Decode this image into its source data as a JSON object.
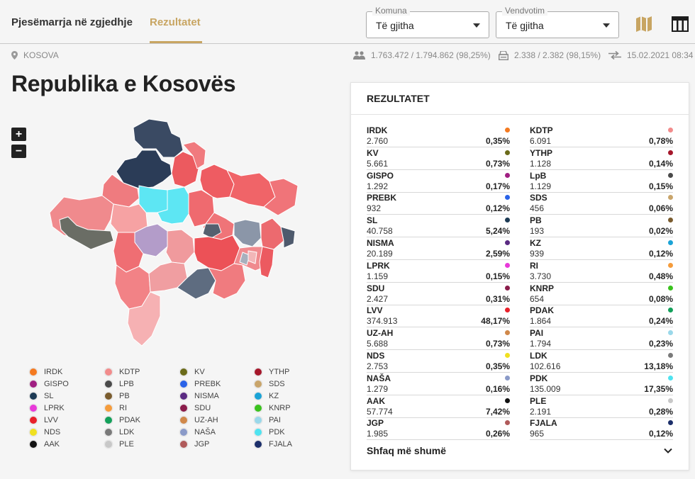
{
  "nav": {
    "tab_primary": "Pjesëmarrja në zgjedhje",
    "tab_active": "Rezultatet"
  },
  "filters": {
    "komuna": {
      "label": "Komuna",
      "value": "Të gjitha"
    },
    "vendvotim": {
      "label": "Vendvotim",
      "value": "Të gjitha"
    }
  },
  "icons": {
    "map": "map-icon",
    "table": "table-icon",
    "location": "location-pin-icon",
    "people": "people-icon",
    "ballot": "ballot-box-icon",
    "sync": "swap-arrows-icon"
  },
  "stats": {
    "location": "KOSOVA",
    "turnout": "1.763.472 / 1.794.862 (98,25%)",
    "stations": "2.338 / 2.382 (98,15%)",
    "updated": "15.02.2021 08:34"
  },
  "page_title": "Republika e Kosovës",
  "zoom": {
    "in": "+",
    "out": "−"
  },
  "legend": [
    {
      "name": "IRDK",
      "color": "#f47a20"
    },
    {
      "name": "KDTP",
      "color": "#f28c8c"
    },
    {
      "name": "KV",
      "color": "#6b6b1a"
    },
    {
      "name": "YTHP",
      "color": "#a5172b"
    },
    {
      "name": "GISPO",
      "color": "#a01f82"
    },
    {
      "name": "LPB",
      "color": "#4a4a4a"
    },
    {
      "name": "PREBK",
      "color": "#2a63e8"
    },
    {
      "name": "SDS",
      "color": "#c9a56b"
    },
    {
      "name": "SL",
      "color": "#1c3a54"
    },
    {
      "name": "PB",
      "color": "#7a5c2e"
    },
    {
      "name": "NISMA",
      "color": "#5a2a82"
    },
    {
      "name": "KZ",
      "color": "#1ba3d6"
    },
    {
      "name": "LPRK",
      "color": "#e83ad9"
    },
    {
      "name": "RI",
      "color": "#f59c3c"
    },
    {
      "name": "SDU",
      "color": "#8a1c4a"
    },
    {
      "name": "KNRP",
      "color": "#3ac21e"
    },
    {
      "name": "LVV",
      "color": "#e8202a"
    },
    {
      "name": "PDAK",
      "color": "#13a05a"
    },
    {
      "name": "UZ-AH",
      "color": "#d0884a"
    },
    {
      "name": "PAI",
      "color": "#9ad8ea"
    },
    {
      "name": "NDS",
      "color": "#f0e020"
    },
    {
      "name": "LDK",
      "color": "#7a7a7a"
    },
    {
      "name": "NAŠA",
      "color": "#8a9ac8"
    },
    {
      "name": "PDK",
      "color": "#4fe3f0"
    },
    {
      "name": "AAK",
      "color": "#111111"
    },
    {
      "name": "PLE",
      "color": "#c8c8c8"
    },
    {
      "name": "JGP",
      "color": "#b05a5a"
    },
    {
      "name": "FJALA",
      "color": "#1c2f6a"
    }
  ],
  "results": {
    "title": "REZULTATET",
    "items": [
      {
        "party": "IRDK",
        "votes": "2.760",
        "pct": "0,35%",
        "color": "#f47a20"
      },
      {
        "party": "KDTP",
        "votes": "6.091",
        "pct": "0,78%",
        "color": "#f28c8c"
      },
      {
        "party": "KV",
        "votes": "5.661",
        "pct": "0,73%",
        "color": "#6b6b1a"
      },
      {
        "party": "YTHP",
        "votes": "1.128",
        "pct": "0,14%",
        "color": "#a5172b"
      },
      {
        "party": "GISPO",
        "votes": "1.292",
        "pct": "0,17%",
        "color": "#a01f82"
      },
      {
        "party": "LpB",
        "votes": "1.129",
        "pct": "0,15%",
        "color": "#4a4a4a"
      },
      {
        "party": "PREBK",
        "votes": "932",
        "pct": "0,12%",
        "color": "#2a63e8"
      },
      {
        "party": "SDS",
        "votes": "456",
        "pct": "0,06%",
        "color": "#c9a56b"
      },
      {
        "party": "SL",
        "votes": "40.758",
        "pct": "5,24%",
        "color": "#1c3a54"
      },
      {
        "party": "PB",
        "votes": "193",
        "pct": "0,02%",
        "color": "#7a5c2e"
      },
      {
        "party": "NISMA",
        "votes": "20.189",
        "pct": "2,59%",
        "color": "#5a2a82"
      },
      {
        "party": "KZ",
        "votes": "939",
        "pct": "0,12%",
        "color": "#1ba3d6"
      },
      {
        "party": "LPRK",
        "votes": "1.159",
        "pct": "0,15%",
        "color": "#e83ad9"
      },
      {
        "party": "RI",
        "votes": "3.730",
        "pct": "0,48%",
        "color": "#f59c3c"
      },
      {
        "party": "SDU",
        "votes": "2.427",
        "pct": "0,31%",
        "color": "#8a1c4a"
      },
      {
        "party": "KNRP",
        "votes": "654",
        "pct": "0,08%",
        "color": "#3ac21e"
      },
      {
        "party": "LVV",
        "votes": "374.913",
        "pct": "48,17%",
        "color": "#e8202a"
      },
      {
        "party": "PDAK",
        "votes": "1.864",
        "pct": "0,24%",
        "color": "#13a05a"
      },
      {
        "party": "UZ-AH",
        "votes": "5.688",
        "pct": "0,73%",
        "color": "#d0884a"
      },
      {
        "party": "PAI",
        "votes": "1.794",
        "pct": "0,23%",
        "color": "#9ad8ea"
      },
      {
        "party": "NDS",
        "votes": "2.753",
        "pct": "0,35%",
        "color": "#f0e020"
      },
      {
        "party": "LDK",
        "votes": "102.616",
        "pct": "13,18%",
        "color": "#7a7a7a"
      },
      {
        "party": "NAŠA",
        "votes": "1.279",
        "pct": "0,16%",
        "color": "#8a9ac8"
      },
      {
        "party": "PDK",
        "votes": "135.009",
        "pct": "17,35%",
        "color": "#4fe3f0"
      },
      {
        "party": "AAK",
        "votes": "57.774",
        "pct": "7,42%",
        "color": "#111111"
      },
      {
        "party": "PLE",
        "votes": "2.191",
        "pct": "0,28%",
        "color": "#c8c8c8"
      },
      {
        "party": "JGP",
        "votes": "1.985",
        "pct": "0,26%",
        "color": "#b05a5a"
      },
      {
        "party": "FJALA",
        "votes": "965",
        "pct": "0,12%",
        "color": "#1c2f6a"
      }
    ],
    "show_more": "Shfaq më shumë"
  }
}
